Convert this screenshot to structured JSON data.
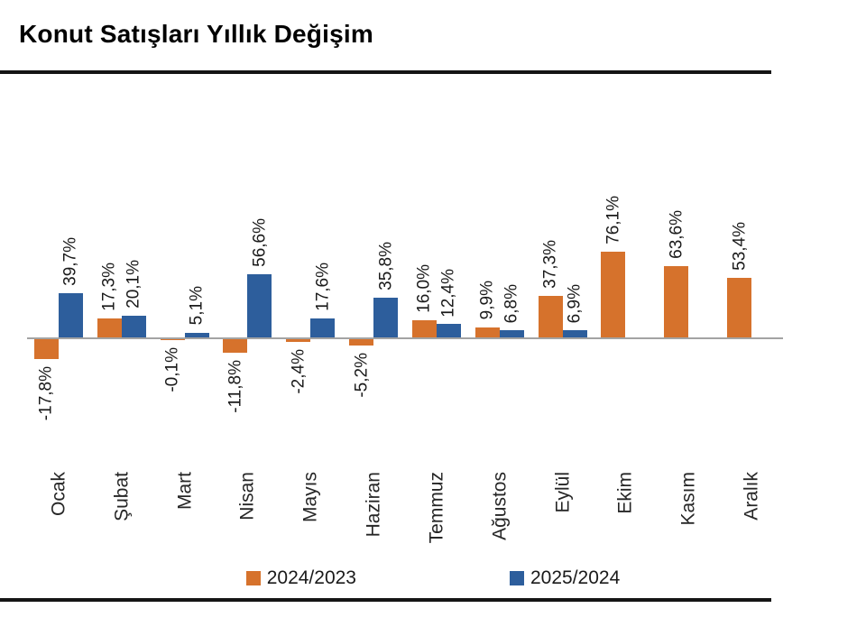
{
  "chart_data": {
    "type": "bar",
    "title": "Konut Satışları Yıllık Değişim",
    "xlabel": "",
    "ylabel": "",
    "unit": "%",
    "decimal_separator": ",",
    "grid": false,
    "y_axis_visible": false,
    "ylim": [
      -20,
      80
    ],
    "legend_position": "bottom",
    "categories": [
      "Ocak",
      "Şubat",
      "Mart",
      "Nisan",
      "Mayıs",
      "Haziran",
      "Temmuz",
      "Ağustos",
      "Eylül",
      "Ekim",
      "Kasım",
      "Aralık"
    ],
    "series": [
      {
        "name": "2024/2023",
        "color": "#D6722C",
        "values": [
          -17.8,
          17.3,
          -0.1,
          -11.8,
          -2.4,
          -5.2,
          16.0,
          9.9,
          37.3,
          76.1,
          63.6,
          53.4
        ],
        "labels": [
          "-17,8%",
          "17,3%",
          "-0,1%",
          "-11,8%",
          "-2,4%",
          "-5,2%",
          "16,0%",
          "9,9%",
          "37,3%",
          "76,1%",
          "63,6%",
          "53,4%"
        ]
      },
      {
        "name": "2025/2024",
        "color": "#2D5E9C",
        "values": [
          39.7,
          20.1,
          5.1,
          56.6,
          17.6,
          35.8,
          12.4,
          6.8,
          6.9,
          null,
          null,
          null
        ],
        "labels": [
          "39,7%",
          "20,1%",
          "5,1%",
          "56,6%",
          "17,6%",
          "35,8%",
          "12,4%",
          "6,8%",
          "6,9%",
          null,
          null,
          null
        ]
      }
    ]
  }
}
